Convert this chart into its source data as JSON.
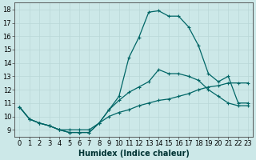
{
  "xlabel": "Humidex (Indice chaleur)",
  "ylabel": "",
  "bg_color": "#cce8e8",
  "grid_color": "#b8d8d8",
  "line_color": "#006666",
  "xlim": [
    -0.5,
    23.5
  ],
  "ylim": [
    8.5,
    18.5
  ],
  "xticks": [
    0,
    1,
    2,
    3,
    4,
    5,
    6,
    7,
    8,
    9,
    10,
    11,
    12,
    13,
    14,
    15,
    16,
    17,
    18,
    19,
    20,
    21,
    22,
    23
  ],
  "yticks": [
    9,
    10,
    11,
    12,
    13,
    14,
    15,
    16,
    17,
    18
  ],
  "line1_x": [
    0,
    1,
    2,
    3,
    4,
    5,
    6,
    7,
    8,
    9,
    10,
    11,
    12,
    13,
    14,
    15,
    16,
    17,
    18,
    19,
    20,
    21,
    22,
    23
  ],
  "line1_y": [
    10.7,
    9.8,
    9.5,
    9.3,
    9.0,
    8.8,
    8.8,
    8.8,
    9.5,
    10.5,
    11.5,
    14.4,
    15.9,
    17.8,
    17.9,
    17.5,
    17.5,
    16.7,
    15.3,
    13.2,
    12.6,
    13.0,
    11.0,
    11.0
  ],
  "line2_x": [
    0,
    1,
    2,
    3,
    4,
    5,
    6,
    7,
    8,
    9,
    10,
    11,
    12,
    13,
    14,
    15,
    16,
    17,
    18,
    19,
    20,
    21,
    22,
    23
  ],
  "line2_y": [
    10.7,
    9.8,
    9.5,
    9.3,
    9.0,
    8.8,
    8.8,
    8.8,
    9.5,
    10.5,
    11.2,
    11.8,
    12.2,
    12.6,
    13.5,
    13.2,
    13.2,
    13.0,
    12.7,
    12.0,
    11.5,
    11.0,
    10.8,
    10.8
  ],
  "line3_x": [
    0,
    1,
    2,
    3,
    4,
    5,
    6,
    7,
    8,
    9,
    10,
    11,
    12,
    13,
    14,
    15,
    16,
    17,
    18,
    19,
    20,
    21,
    22,
    23
  ],
  "line3_y": [
    10.7,
    9.8,
    9.5,
    9.3,
    9.0,
    9.0,
    9.0,
    9.0,
    9.5,
    10.0,
    10.3,
    10.5,
    10.8,
    11.0,
    11.2,
    11.3,
    11.5,
    11.7,
    12.0,
    12.2,
    12.3,
    12.5,
    12.5,
    12.5
  ],
  "marker": "+",
  "markersize": 3,
  "linewidth": 0.9,
  "xlabel_fontsize": 7,
  "tick_fontsize": 6
}
